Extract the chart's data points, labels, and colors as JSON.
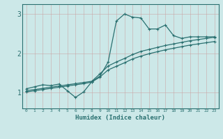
{
  "xlabel": "Humidex (Indice chaleur)",
  "bg_color": "#cce8e8",
  "grid_color": "#b8d8d8",
  "line_color": "#2a7070",
  "xlim": [
    -0.5,
    23.5
  ],
  "ylim": [
    0.6,
    3.25
  ],
  "yticks": [
    1,
    2,
    3
  ],
  "xticks": [
    0,
    1,
    2,
    3,
    4,
    5,
    6,
    7,
    8,
    9,
    10,
    11,
    12,
    13,
    14,
    15,
    16,
    17,
    18,
    19,
    20,
    21,
    22,
    23
  ],
  "series1_x": [
    0,
    1,
    2,
    3,
    4,
    5,
    6,
    7,
    8,
    9,
    10,
    11,
    12,
    13,
    14,
    15,
    16,
    17,
    18,
    19,
    20,
    21,
    22,
    23
  ],
  "series1_y": [
    1.1,
    1.15,
    1.2,
    1.18,
    1.22,
    1.05,
    0.88,
    1.02,
    1.28,
    1.42,
    1.78,
    2.82,
    3.0,
    2.92,
    2.9,
    2.62,
    2.62,
    2.72,
    2.45,
    2.38,
    2.42,
    2.42,
    2.42,
    2.42
  ],
  "series2_x": [
    0,
    1,
    2,
    3,
    4,
    5,
    6,
    7,
    8,
    9,
    10,
    11,
    12,
    13,
    14,
    15,
    16,
    17,
    18,
    19,
    20,
    21,
    22,
    23
  ],
  "series2_y": [
    1.05,
    1.08,
    1.11,
    1.14,
    1.17,
    1.2,
    1.23,
    1.26,
    1.29,
    1.48,
    1.68,
    1.78,
    1.87,
    1.97,
    2.05,
    2.1,
    2.15,
    2.2,
    2.24,
    2.28,
    2.32,
    2.35,
    2.38,
    2.41
  ],
  "series3_x": [
    0,
    1,
    2,
    3,
    4,
    5,
    6,
    7,
    8,
    9,
    10,
    11,
    12,
    13,
    14,
    15,
    16,
    17,
    18,
    19,
    20,
    21,
    22,
    23
  ],
  "series3_y": [
    1.02,
    1.05,
    1.08,
    1.11,
    1.14,
    1.17,
    1.2,
    1.23,
    1.27,
    1.4,
    1.58,
    1.67,
    1.76,
    1.86,
    1.93,
    1.99,
    2.04,
    2.09,
    2.13,
    2.17,
    2.21,
    2.24,
    2.27,
    2.3
  ]
}
